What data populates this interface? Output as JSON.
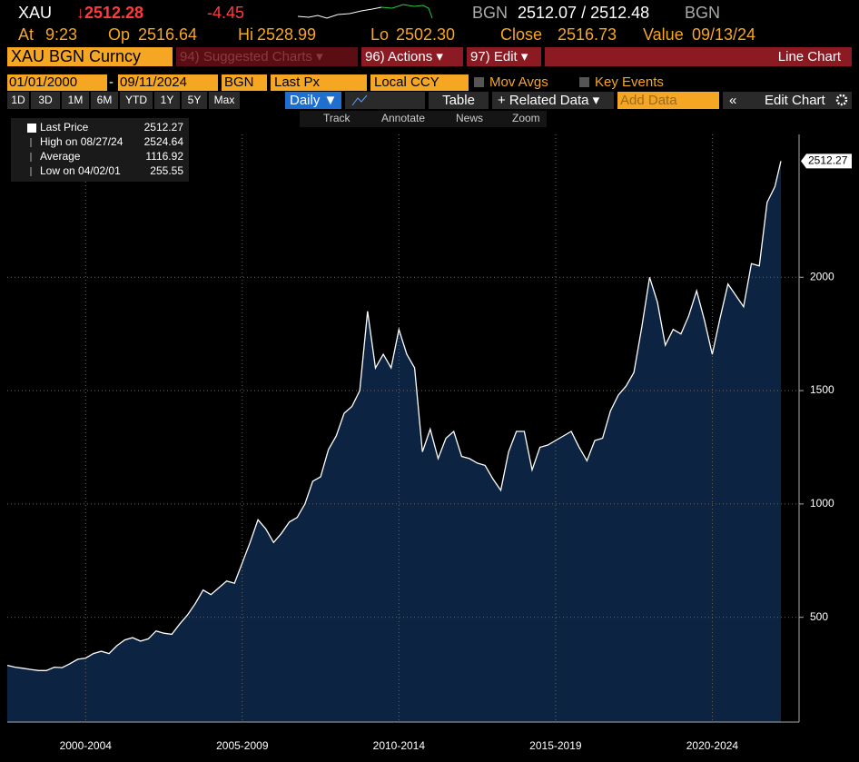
{
  "header": {
    "ticker": "XAU",
    "last": "↓2512.28",
    "change": "-4.45",
    "source": "BGN",
    "bid_ask": "2512.07 / 2512.48",
    "source2": "BGN",
    "at_label": "At",
    "at": "9:23",
    "op_label": "Op",
    "op": "2516.64",
    "hi_label": "Hi",
    "hi": "2528.99",
    "lo_label": "Lo",
    "lo": "2502.30",
    "close_label": "Close",
    "close": "2516.73",
    "value_label": "Value",
    "value": "09/13/24"
  },
  "menu": {
    "security": "XAU BGN Curncy",
    "suggested": "94) Suggested Charts ▾",
    "actions": "96) Actions ▾",
    "edit": "97) Edit ▾",
    "chart_type": "Line Chart"
  },
  "settings": {
    "start": "01/01/2000",
    "end": "09/11/2024",
    "source": "BGN",
    "field": "Last Px",
    "currency": "Local CCY",
    "mov_avgs": "Mov Avgs",
    "key_events": "Key Events"
  },
  "toolbar": {
    "ranges": [
      "1D",
      "3D",
      "1M",
      "6M",
      "YTD",
      "1Y",
      "5Y",
      "Max"
    ],
    "frequency": "Daily ▼",
    "table": "Table",
    "related": "+ Related Data ▾",
    "add_data": "Add Data",
    "collapse": "«",
    "edit_chart": "Edit Chart"
  },
  "tools": [
    "Track",
    "Annotate",
    "News",
    "Zoom"
  ],
  "legend": {
    "rows": [
      {
        "label": "Last Price",
        "value": "2512.27"
      },
      {
        "label": "High on 08/27/24",
        "value": "2524.64"
      },
      {
        "label": "Average",
        "value": "1116.92"
      },
      {
        "label": "Low on 04/02/01",
        "value": "255.55"
      }
    ]
  },
  "chart_data": {
    "type": "area",
    "color": "#ffffff",
    "fill": "#0c2342",
    "x": [
      2000,
      2000.25,
      2000.5,
      2000.75,
      2001,
      2001.25,
      2001.5,
      2001.75,
      2002,
      2002.25,
      2002.5,
      2002.75,
      2003,
      2003.25,
      2003.5,
      2003.75,
      2004,
      2004.25,
      2004.5,
      2004.75,
      2005,
      2005.25,
      2005.5,
      2005.75,
      2006,
      2006.25,
      2006.5,
      2006.75,
      2007,
      2007.25,
      2007.5,
      2007.75,
      2008,
      2008.25,
      2008.5,
      2008.75,
      2009,
      2009.25,
      2009.5,
      2009.75,
      2010,
      2010.25,
      2010.5,
      2010.75,
      2011,
      2011.25,
      2011.5,
      2011.75,
      2012,
      2012.25,
      2012.5,
      2012.75,
      2013,
      2013.25,
      2013.5,
      2013.75,
      2014,
      2014.25,
      2014.5,
      2014.75,
      2015,
      2015.25,
      2015.5,
      2015.75,
      2016,
      2016.25,
      2016.5,
      2016.75,
      2017,
      2017.25,
      2017.5,
      2017.75,
      2018,
      2018.25,
      2018.5,
      2018.75,
      2019,
      2019.25,
      2019.5,
      2019.75,
      2020,
      2020.25,
      2020.5,
      2020.75,
      2021,
      2021.25,
      2021.5,
      2021.75,
      2022,
      2022.25,
      2022.5,
      2022.75,
      2023,
      2023.25,
      2023.5,
      2023.75,
      2024,
      2024.25,
      2024.5,
      2024.69
    ],
    "values": [
      288,
      280,
      275,
      270,
      265,
      265,
      280,
      278,
      295,
      315,
      320,
      340,
      350,
      340,
      375,
      400,
      410,
      395,
      405,
      440,
      430,
      425,
      470,
      510,
      560,
      620,
      600,
      630,
      660,
      650,
      740,
      830,
      930,
      890,
      830,
      870,
      920,
      940,
      1000,
      1100,
      1120,
      1240,
      1300,
      1400,
      1430,
      1500,
      1850,
      1600,
      1660,
      1600,
      1770,
      1660,
      1600,
      1230,
      1330,
      1200,
      1290,
      1320,
      1210,
      1200,
      1180,
      1170,
      1110,
      1060,
      1230,
      1320,
      1320,
      1150,
      1250,
      1260,
      1280,
      1300,
      1320,
      1250,
      1190,
      1280,
      1290,
      1410,
      1480,
      1520,
      1580,
      1780,
      2000,
      1890,
      1700,
      1770,
      1750,
      1830,
      1940,
      1810,
      1660,
      1820,
      1970,
      1920,
      1870,
      2060,
      2050,
      2330,
      2400,
      2512.27
    ],
    "xlim": [
      2000,
      2025.27
    ],
    "ylim": [
      38,
      2630
    ],
    "xticks": [
      {
        "value": 2002.5,
        "label": "2000-2004"
      },
      {
        "value": 2007.5,
        "label": "2005-2009"
      },
      {
        "value": 2012.5,
        "label": "2010-2014"
      },
      {
        "value": 2017.5,
        "label": "2015-2019"
      },
      {
        "value": 2022.5,
        "label": "2020-2024"
      }
    ],
    "yticks": [
      500,
      1000,
      1500,
      2000
    ],
    "grid": true
  }
}
